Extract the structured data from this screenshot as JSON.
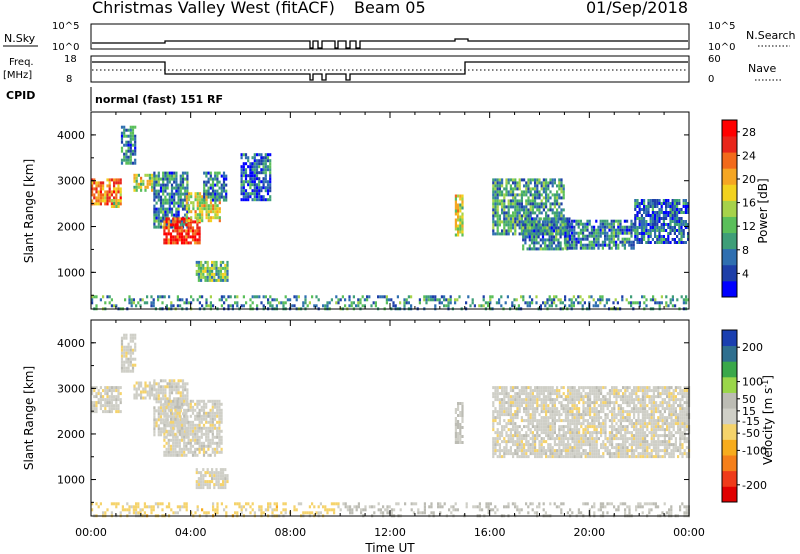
{
  "header": {
    "station": "Christmas Valley West (fitACF)",
    "beam": "Beam 05",
    "date": "01/Sep/2018"
  },
  "status_panels": {
    "nsky": {
      "label": "N.Sky",
      "ticks": [
        "10^5",
        "10^0"
      ]
    },
    "nsearch": {
      "label": "N.Search",
      "ticks": [
        "10^5",
        "10^0"
      ]
    },
    "freq": {
      "label_line1": "Freq.",
      "label_line2": "[MHz]",
      "ticks": [
        "18",
        "8"
      ]
    },
    "nave": {
      "label": "Nave",
      "ticks": [
        "60",
        "0"
      ]
    },
    "cpid": {
      "label": "CPID",
      "value": "normal (fast) 151 RF"
    }
  },
  "colors": {
    "power_scale": [
      "#0000ff",
      "#1e3fa8",
      "#2f6fb0",
      "#3e9e78",
      "#5abf5a",
      "#a6d24a",
      "#f2d21f",
      "#f5a623",
      "#f26a1b",
      "#e8261b",
      "#ff0000"
    ],
    "velocity_scale": [
      "#e00000",
      "#ef3b1a",
      "#f57f1a",
      "#f7ac1d",
      "#f5d36b",
      "#cfcfc7",
      "#bcbcb4",
      "#9ad64a",
      "#3aa84a",
      "#2f6f8f",
      "#1a3fb0"
    ]
  },
  "chart_data": [
    {
      "type": "heatmap",
      "name": "power",
      "xlabel": "",
      "ylabel": "Slant Range [km]",
      "yticks": [
        "4000",
        "3000",
        "2000",
        "1000"
      ],
      "ylim": [
        200,
        4500
      ],
      "xlim": [
        "00:00",
        "24:00"
      ],
      "colorbar": {
        "label": "Power [dB]",
        "ticks": [
          "28",
          "24",
          "20",
          "16",
          "12",
          "8",
          "4"
        ],
        "range": [
          0,
          30
        ]
      },
      "regions": [
        {
          "t0": 0.0,
          "t1": 1.2,
          "r0": 2500,
          "r1": 3050,
          "value": 22
        },
        {
          "t0": 0.8,
          "t1": 1.1,
          "r0": 2450,
          "r1": 2600,
          "value": 16
        },
        {
          "t0": 1.2,
          "t1": 1.8,
          "r0": 3400,
          "r1": 4200,
          "value": 8
        },
        {
          "t0": 1.7,
          "t1": 2.5,
          "r0": 2800,
          "r1": 3150,
          "value": 16
        },
        {
          "t0": 2.5,
          "t1": 3.9,
          "r0": 2000,
          "r1": 3200,
          "value": 8
        },
        {
          "t0": 2.9,
          "t1": 4.4,
          "r0": 1650,
          "r1": 2200,
          "value": 26
        },
        {
          "t0": 3.8,
          "t1": 5.2,
          "r0": 2150,
          "r1": 2750,
          "value": 17
        },
        {
          "t0": 4.5,
          "t1": 5.4,
          "r0": 2600,
          "r1": 3200,
          "value": 7
        },
        {
          "t0": 4.2,
          "t1": 5.5,
          "r0": 800,
          "r1": 1250,
          "value": 12
        },
        {
          "t0": 6.0,
          "t1": 7.2,
          "r0": 2600,
          "r1": 3600,
          "value": 6
        },
        {
          "t0": 14.6,
          "t1": 14.9,
          "r0": 1800,
          "r1": 2700,
          "value": 16
        },
        {
          "t0": 16.1,
          "t1": 19.0,
          "r0": 1850,
          "r1": 3050,
          "value": 10
        },
        {
          "t0": 17.3,
          "t1": 19.2,
          "r0": 1500,
          "r1": 2200,
          "value": 8
        },
        {
          "t0": 19.0,
          "t1": 21.8,
          "r0": 1500,
          "r1": 2150,
          "value": 8
        },
        {
          "t0": 21.8,
          "t1": 24.0,
          "r0": 1650,
          "r1": 2600,
          "value": 6
        },
        {
          "t0": 0.0,
          "t1": 24.0,
          "r0": 200,
          "r1": 500,
          "value": 9
        }
      ]
    },
    {
      "type": "heatmap",
      "name": "velocity",
      "xlabel": "Time UT",
      "ylabel": "Slant Range [km]",
      "xticks": [
        "00:00",
        "04:00",
        "08:00",
        "12:00",
        "16:00",
        "20:00",
        "00:00"
      ],
      "yticks": [
        "4000",
        "3000",
        "2000",
        "1000"
      ],
      "ylim": [
        200,
        4500
      ],
      "xlim": [
        "00:00",
        "24:00"
      ],
      "colorbar": {
        "label": "Velocity [m s^-1]",
        "ticks": [
          "200",
          "100",
          "50",
          "15",
          "-15",
          "-50",
          "-100",
          "-200"
        ],
        "range": [
          -250,
          250
        ]
      },
      "regions": [
        {
          "t0": 0.0,
          "t1": 1.2,
          "r0": 2500,
          "r1": 3050,
          "value": 0
        },
        {
          "t0": 1.2,
          "t1": 1.8,
          "r0": 3400,
          "r1": 4200,
          "value": 0
        },
        {
          "t0": 1.7,
          "t1": 2.5,
          "r0": 2800,
          "r1": 3150,
          "value": -5
        },
        {
          "t0": 2.5,
          "t1": 3.9,
          "r0": 2000,
          "r1": 3200,
          "value": 0
        },
        {
          "t0": 2.9,
          "t1": 5.2,
          "r0": 1500,
          "r1": 2750,
          "value": 0
        },
        {
          "t0": 4.2,
          "t1": 5.5,
          "r0": 800,
          "r1": 1250,
          "value": -5
        },
        {
          "t0": 14.6,
          "t1": 14.9,
          "r0": 1800,
          "r1": 2700,
          "value": 30
        },
        {
          "t0": 16.1,
          "t1": 24.0,
          "r0": 1500,
          "r1": 3050,
          "value": 0
        },
        {
          "t0": 0.0,
          "t1": 10.0,
          "r0": 200,
          "r1": 500,
          "value": -40
        },
        {
          "t0": 10.0,
          "t1": 24.0,
          "r0": 200,
          "r1": 500,
          "value": 30
        }
      ]
    }
  ]
}
